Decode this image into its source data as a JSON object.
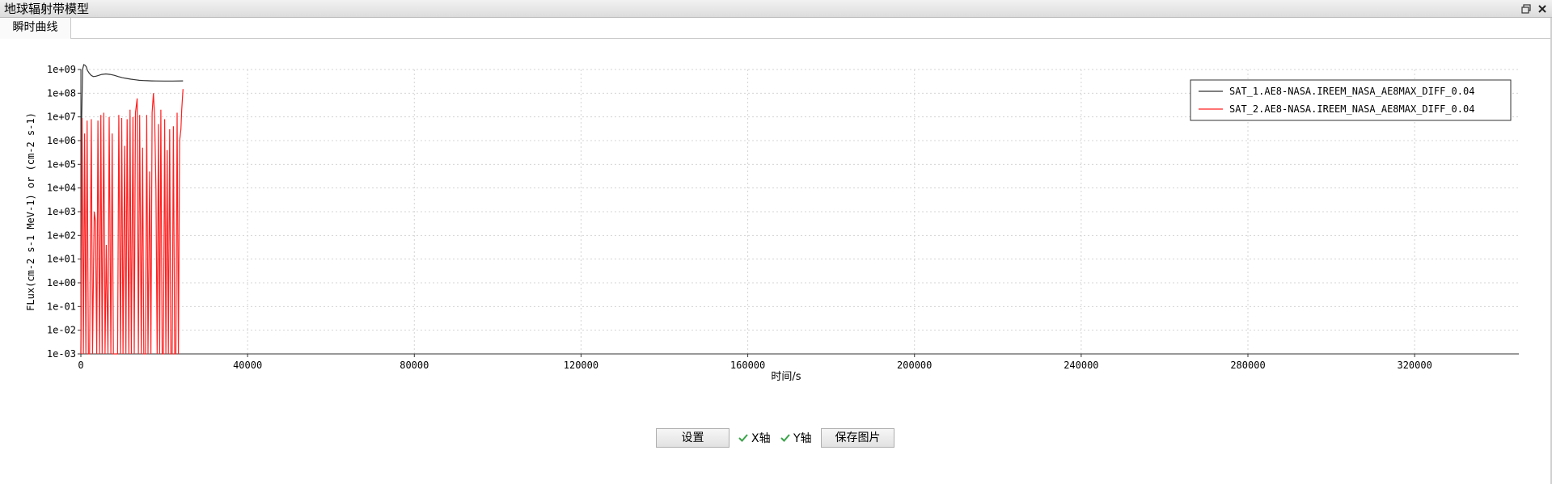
{
  "window": {
    "title": "地球辐射带模型",
    "restore_icon": "restore-icon",
    "close_icon": "close-icon"
  },
  "tabs": [
    {
      "label": "瞬时曲线",
      "active": true
    }
  ],
  "controls": {
    "settings_label": "设置",
    "x_axis_label": "X轴",
    "x_axis_checked": true,
    "y_axis_label": "Y轴",
    "y_axis_checked": true,
    "save_image_label": "保存图片"
  },
  "chart_data": {
    "type": "line",
    "title": "",
    "xlabel": "时间/s",
    "ylabel": "FLux(cm-2 s-1 MeV-1) or (cm-2 s-1)",
    "xlim": [
      0,
      345000
    ],
    "ylim": [
      0.001,
      1000000000
    ],
    "yscale": "log",
    "grid": true,
    "legend_position": "top-right",
    "x_ticks": [
      "0",
      "40000",
      "80000",
      "120000",
      "160000",
      "200000",
      "240000",
      "280000",
      "320000"
    ],
    "x_tick_values": [
      0,
      40000,
      80000,
      120000,
      160000,
      200000,
      240000,
      280000,
      320000
    ],
    "y_ticks": [
      "1e-03",
      "1e-02",
      "1e-01",
      "1e+00",
      "1e+01",
      "1e+02",
      "1e+03",
      "1e+04",
      "1e+05",
      "1e+06",
      "1e+07",
      "1e+08",
      "1e+09"
    ],
    "y_tick_values": [
      0.001,
      0.01,
      0.1,
      1,
      10,
      100,
      1000,
      10000,
      100000,
      1000000,
      10000000,
      100000000,
      1000000000
    ],
    "series": [
      {
        "name": "SAT_1.AE8-NASA.IREEM_NASA_AE8MAX_DIFF_0.04",
        "color": "#333333",
        "x": [
          0,
          200,
          400,
          700,
          1000,
          1300,
          1600,
          2000,
          2500,
          3000,
          3600,
          4200,
          5000,
          6000,
          7000,
          8000,
          9000,
          10000,
          11000,
          12000,
          13000,
          14000,
          15000,
          16000,
          17000,
          18000,
          20000,
          22000,
          24500
        ],
        "y": [
          0.001,
          10000000,
          1000000000,
          1600000000,
          1500000000,
          1300000000,
          900000000,
          700000000,
          560000000,
          500000000,
          520000000,
          560000000,
          620000000,
          650000000,
          620000000,
          570000000,
          500000000,
          450000000,
          420000000,
          390000000,
          370000000,
          350000000,
          340000000,
          335000000,
          330000000,
          328000000,
          326000000,
          326000000,
          330000000
        ]
      },
      {
        "name": "SAT_2.AE8-NASA.IREEM_NASA_AE8MAX_DIFF_0.04",
        "color": "#ff2020",
        "x": [
          0,
          300,
          600,
          900,
          1200,
          1500,
          1800,
          2100,
          2500,
          2800,
          3200,
          3500,
          3800,
          4100,
          4500,
          4800,
          5100,
          5500,
          5800,
          6100,
          6500,
          6800,
          7200,
          7500,
          7800,
          8100,
          8500,
          8800,
          9100,
          9500,
          9800,
          10100,
          10500,
          10800,
          11100,
          11500,
          11800,
          12100,
          12500,
          12800,
          13100,
          13500,
          13800,
          14100,
          14500,
          14800,
          15100,
          15500,
          15800,
          16100,
          16500,
          16800,
          17100,
          17400,
          17700,
          18000,
          18300,
          18600,
          18900,
          19200,
          19500,
          19800,
          20100,
          20400,
          20700,
          21000,
          21300,
          21600,
          21900,
          22200,
          22500,
          22800,
          23100,
          23400,
          23700,
          24000,
          24200,
          24500
        ],
        "y": [
          0.001,
          9000000,
          0.001,
          2000000,
          0.001,
          7000000,
          0.001,
          0.001,
          8000000,
          0.001,
          1000,
          400,
          0.001,
          7000000,
          0.001,
          12000000,
          0.001,
          15000000,
          0.001,
          40,
          0.001,
          10000000,
          0.001,
          2000000,
          0.001,
          0.001,
          0.001,
          0.001,
          12000000,
          0.001,
          9000000,
          0.001,
          600000,
          0.001,
          8000000,
          0.001,
          20000000,
          0.001,
          10000000,
          0.001,
          15000000,
          60000000,
          0.001,
          12000000,
          0.001,
          500000,
          0.001,
          0.001,
          12000000,
          0.001,
          50000,
          0.001,
          15000000,
          100000000,
          10000000,
          10000,
          0.001,
          5000000,
          0.001,
          20000000,
          0.001,
          0.001,
          8000000,
          0.001,
          400000,
          0.001,
          3000000,
          0.001,
          0.001,
          4000000,
          0.001,
          0.001,
          15000000,
          0.001,
          1000000,
          3000000,
          20000000,
          150000000
        ]
      }
    ]
  }
}
